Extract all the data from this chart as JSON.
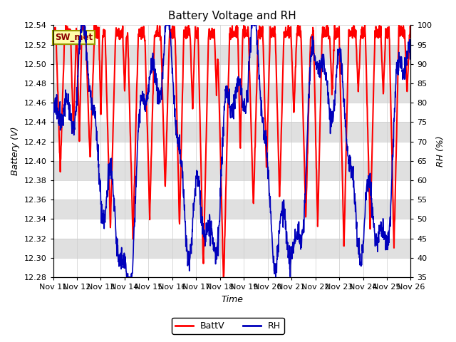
{
  "title": "Battery Voltage and RH",
  "xlabel": "Time",
  "ylabel_left": "Battery (V)",
  "ylabel_right": "RH (%)",
  "ylim_left": [
    12.28,
    12.54
  ],
  "ylim_right": [
    35,
    100
  ],
  "yticks_left": [
    12.28,
    12.3,
    12.32,
    12.34,
    12.36,
    12.38,
    12.4,
    12.42,
    12.44,
    12.46,
    12.48,
    12.5,
    12.52,
    12.54
  ],
  "yticks_right": [
    35,
    40,
    45,
    50,
    55,
    60,
    65,
    70,
    75,
    80,
    85,
    90,
    95,
    100
  ],
  "color_battv": "#FF0000",
  "color_rh": "#0000BB",
  "label_battv": "BattV",
  "label_rh": "RH",
  "annotation_text": "SW_met",
  "bg_color": "#FFFFFF",
  "band_colors": [
    "#FFFFFF",
    "#E0E0E0"
  ],
  "title_fontsize": 11,
  "axis_label_fontsize": 9,
  "tick_fontsize": 8,
  "legend_fontsize": 9,
  "linewidth_battv": 1.5,
  "linewidth_rh": 1.2,
  "xtick_labels": [
    "Nov 11",
    "Nov 12",
    "Nov 13",
    "Nov 14",
    "Nov 15",
    "Nov 16",
    "Nov 17",
    "Nov 18",
    "Nov 19",
    "Nov 20",
    "Nov 21",
    "Nov 22",
    "Nov 23",
    "Nov 24",
    "Nov 25",
    "Nov 26"
  ],
  "num_points": 1500,
  "figsize": [
    6.4,
    4.8
  ],
  "dpi": 100
}
